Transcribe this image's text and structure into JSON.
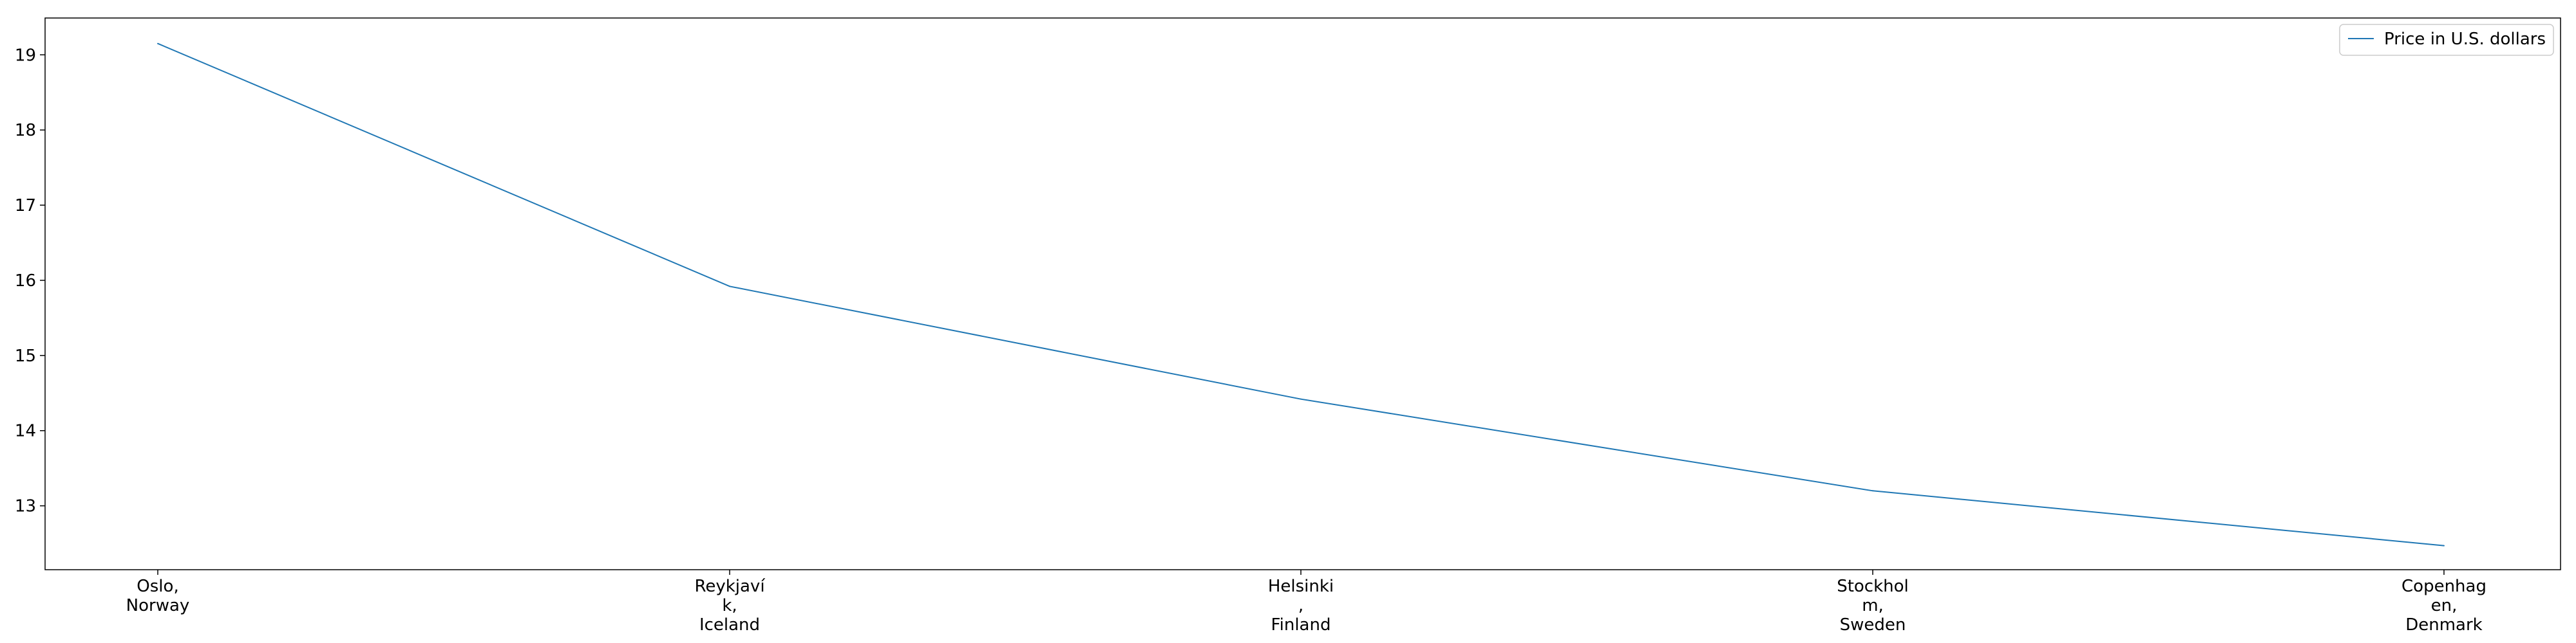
{
  "chart_data": {
    "type": "line",
    "title": "",
    "xlabel": "",
    "ylabel": "",
    "categories": [
      "Oslo,\nNorway",
      "Reykjaví\nk,\nIceland",
      "Helsinki\n,\nFinland",
      "Stockhol\nm,\nSweden",
      "Copenhag\nen,\nDenmark"
    ],
    "series": [
      {
        "name": "Price in U.S. dollars",
        "values": [
          19.15,
          15.92,
          14.42,
          13.2,
          12.47
        ]
      }
    ],
    "yticks": [
      13,
      14,
      15,
      16,
      17,
      18,
      19
    ],
    "ylim": [
      12.15,
      19.49
    ],
    "grid": false,
    "legend": "top-right",
    "colors": {
      "line": "#1f77b4",
      "axis": "#000000",
      "legend_frame": "#cccccc"
    }
  }
}
